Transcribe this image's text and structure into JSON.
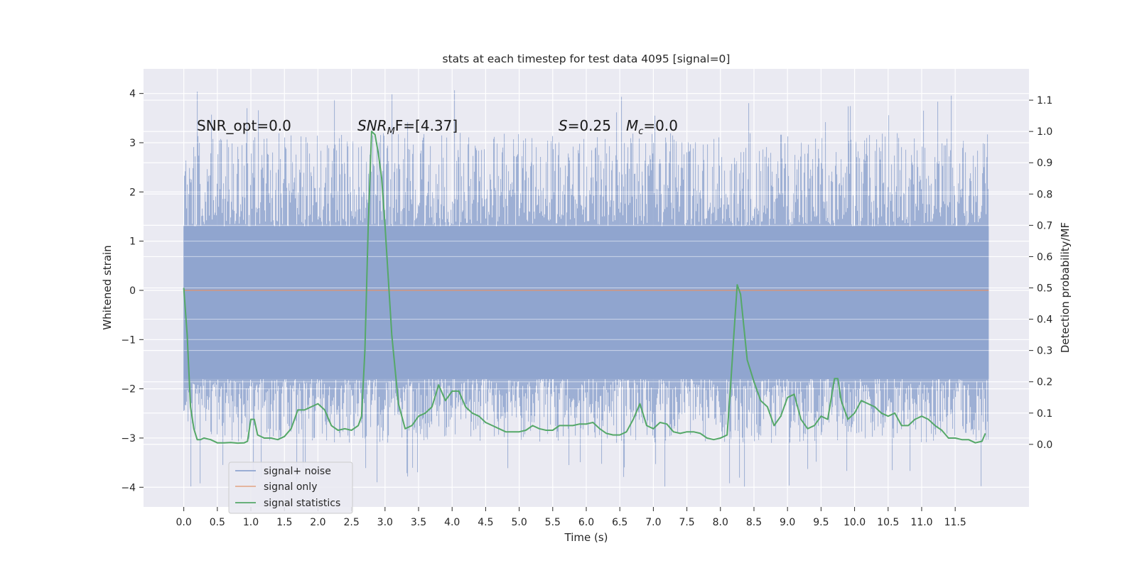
{
  "chart_data": {
    "type": "line",
    "title": "stats at each timestep for test data 4095 [signal=0]",
    "xlabel": "Time (s)",
    "ylabel_left": "Whitened strain",
    "ylabel_right": "Detection probability/MF",
    "xlim": [
      -0.6,
      12.6
    ],
    "ylim_left": [
      -4.4,
      4.5
    ],
    "ylim_right": [
      -0.2,
      1.2
    ],
    "x_ticks": [
      "0.0",
      "0.5",
      "1.0",
      "1.5",
      "2.0",
      "2.5",
      "3.0",
      "3.5",
      "4.0",
      "4.5",
      "5.0",
      "5.5",
      "6.0",
      "6.5",
      "7.0",
      "7.5",
      "8.0",
      "8.5",
      "9.0",
      "9.5",
      "10.0",
      "10.5",
      "11.0",
      "11.5"
    ],
    "y_ticks_left": [
      "4",
      "3",
      "2",
      "1",
      "0",
      "−1",
      "−2",
      "−3",
      "−4"
    ],
    "y_ticks_right": [
      "1.1",
      "1.0",
      "0.9",
      "0.8",
      "0.7",
      "0.6",
      "0.5",
      "0.4",
      "0.3",
      "0.2",
      "0.1",
      "0.0"
    ],
    "annotations": {
      "snr_opt": "SNR_opt=0.0",
      "snr_mf_prefix": "SNR",
      "snr_mf_sub": "M",
      "snr_mf_suffix": "F=[4.37]",
      "s_var": "S",
      "s_value": "=0.25",
      "mc_var": "M",
      "mc_sub": "c",
      "mc_value": "=0.0"
    },
    "legend_position": "lower-left",
    "series": [
      {
        "name": "signal+ noise",
        "axis": "left",
        "color": "#8fa4cf",
        "kind": "noise band",
        "x_range": [
          0.0,
          12.0
        ],
        "core_band": [
          -1.8,
          1.3
        ],
        "max_value": 4.1,
        "min_value": -4.0
      },
      {
        "name": "signal only",
        "axis": "left",
        "color": "#dd8452",
        "x": [
          0.0,
          12.0
        ],
        "values": [
          0.0,
          0.0
        ]
      },
      {
        "name": "signal statistics",
        "axis": "right",
        "color": "#55a868",
        "x": [
          0.0,
          0.05,
          0.1,
          0.15,
          0.2,
          0.25,
          0.3,
          0.4,
          0.5,
          0.6,
          0.7,
          0.8,
          0.9,
          0.95,
          1.0,
          1.05,
          1.1,
          1.2,
          1.3,
          1.4,
          1.5,
          1.6,
          1.7,
          1.8,
          1.9,
          2.0,
          2.1,
          2.2,
          2.3,
          2.4,
          2.5,
          2.6,
          2.65,
          2.7,
          2.75,
          2.8,
          2.85,
          2.9,
          2.95,
          3.0,
          3.1,
          3.2,
          3.3,
          3.4,
          3.5,
          3.6,
          3.7,
          3.8,
          3.9,
          4.0,
          4.1,
          4.2,
          4.3,
          4.4,
          4.5,
          4.6,
          4.7,
          4.8,
          4.9,
          5.0,
          5.1,
          5.2,
          5.3,
          5.4,
          5.5,
          5.6,
          5.7,
          5.8,
          5.9,
          6.0,
          6.1,
          6.2,
          6.3,
          6.4,
          6.5,
          6.6,
          6.7,
          6.8,
          6.9,
          7.0,
          7.1,
          7.2,
          7.3,
          7.4,
          7.5,
          7.6,
          7.7,
          7.8,
          7.9,
          8.0,
          8.1,
          8.15,
          8.2,
          8.25,
          8.3,
          8.4,
          8.5,
          8.6,
          8.7,
          8.8,
          8.9,
          9.0,
          9.1,
          9.2,
          9.3,
          9.4,
          9.5,
          9.6,
          9.7,
          9.75,
          9.8,
          9.9,
          10.0,
          10.1,
          10.2,
          10.3,
          10.4,
          10.5,
          10.6,
          10.7,
          10.8,
          10.9,
          11.0,
          11.1,
          11.2,
          11.3,
          11.4,
          11.5,
          11.6,
          11.7,
          11.8,
          11.9,
          11.95
        ],
        "values": [
          0.5,
          0.35,
          0.12,
          0.05,
          0.015,
          0.015,
          0.02,
          0.015,
          0.005,
          0.005,
          0.006,
          0.004,
          0.005,
          0.01,
          0.08,
          0.08,
          0.03,
          0.02,
          0.02,
          0.015,
          0.025,
          0.05,
          0.11,
          0.11,
          0.12,
          0.13,
          0.11,
          0.06,
          0.045,
          0.05,
          0.045,
          0.06,
          0.09,
          0.3,
          0.7,
          1.0,
          0.99,
          0.93,
          0.85,
          0.7,
          0.35,
          0.13,
          0.05,
          0.06,
          0.09,
          0.1,
          0.12,
          0.19,
          0.14,
          0.17,
          0.17,
          0.12,
          0.1,
          0.09,
          0.07,
          0.06,
          0.05,
          0.04,
          0.04,
          0.04,
          0.045,
          0.06,
          0.05,
          0.045,
          0.045,
          0.06,
          0.06,
          0.06,
          0.065,
          0.065,
          0.07,
          0.05,
          0.035,
          0.03,
          0.03,
          0.04,
          0.08,
          0.13,
          0.06,
          0.05,
          0.07,
          0.065,
          0.04,
          0.035,
          0.04,
          0.04,
          0.035,
          0.02,
          0.015,
          0.02,
          0.03,
          0.18,
          0.35,
          0.51,
          0.48,
          0.27,
          0.2,
          0.14,
          0.12,
          0.06,
          0.09,
          0.15,
          0.16,
          0.08,
          0.05,
          0.06,
          0.09,
          0.08,
          0.21,
          0.21,
          0.14,
          0.08,
          0.1,
          0.14,
          0.13,
          0.12,
          0.1,
          0.09,
          0.1,
          0.06,
          0.06,
          0.08,
          0.09,
          0.08,
          0.06,
          0.045,
          0.02,
          0.02,
          0.015,
          0.015,
          0.005,
          0.01,
          0.035
        ]
      }
    ]
  }
}
